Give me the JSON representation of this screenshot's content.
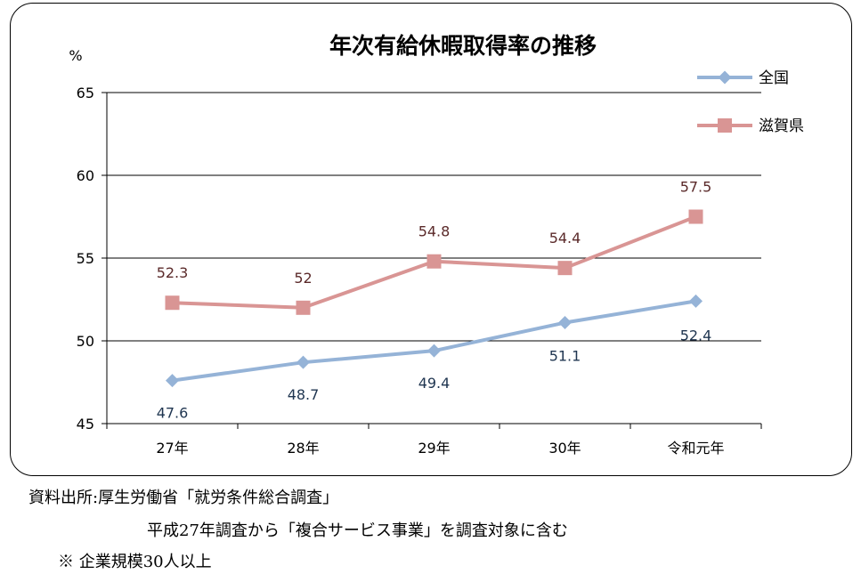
{
  "chart_data": {
    "type": "line",
    "title": "年次有給休暇取得率の推移",
    "ylabel": "%",
    "xlabel": "",
    "categories": [
      "27年",
      "28年",
      "29年",
      "30年",
      "令和元年"
    ],
    "ylim": [
      45,
      65
    ],
    "yticks": [
      45,
      50,
      55,
      60,
      65
    ],
    "grid": true,
    "legend_position": "top-right",
    "series": [
      {
        "name": "全国",
        "values": [
          47.6,
          48.7,
          49.4,
          51.1,
          52.4
        ],
        "labels": [
          "47.6",
          "48.7",
          "49.4",
          "51.1",
          "52.4"
        ],
        "color": "#95b3d7",
        "marker": "diamond"
      },
      {
        "name": "滋賀県",
        "values": [
          52.3,
          52,
          54.8,
          54.4,
          57.5
        ],
        "labels": [
          "52.3",
          "52",
          "54.8",
          "54.4",
          "57.5"
        ],
        "color": "#d99594",
        "marker": "square"
      }
    ]
  },
  "source": {
    "line1": "資料出所:厚生労働省「就労条件総合調査」",
    "line2": "平成27年調査から「複合サービス事業」を調査対象に含む",
    "line3": "※ 企業規模30人以上"
  }
}
